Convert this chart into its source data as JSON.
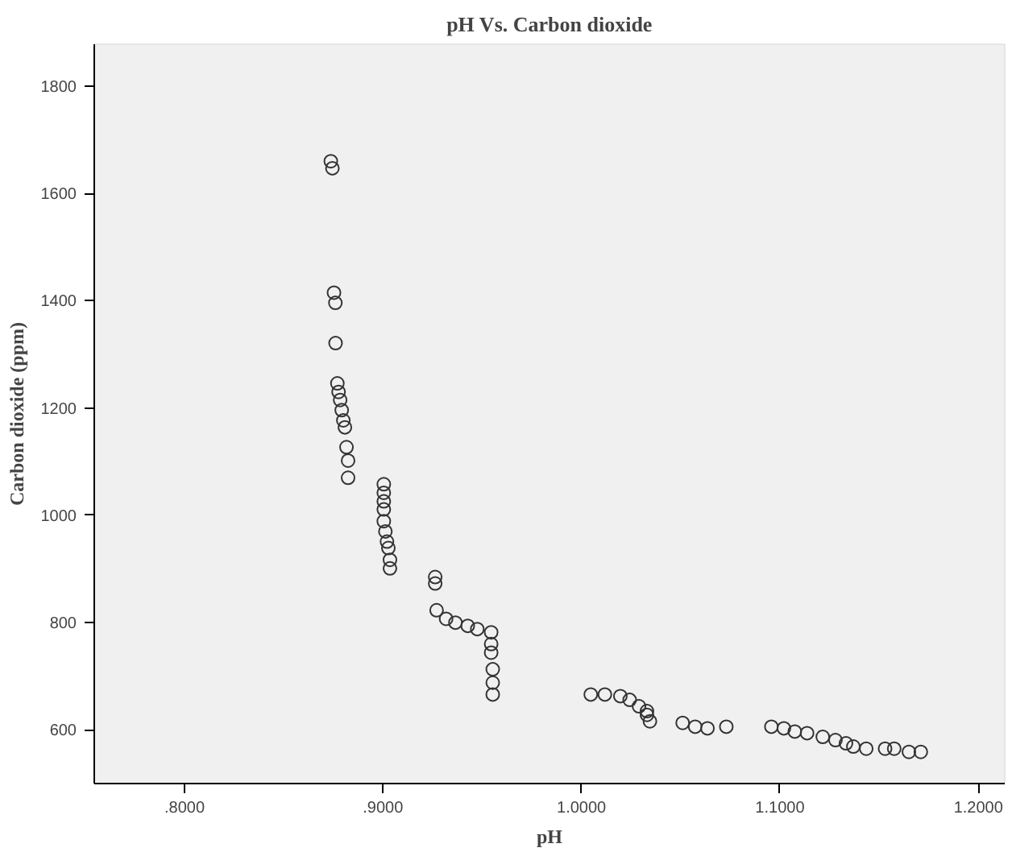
{
  "chart_data": {
    "type": "scatter",
    "title": "pH Vs. Carbon dioxide",
    "xlabel": "pH",
    "ylabel": "Carbon dioxide (ppm)",
    "xlim": [
      0.7545,
      1.2133
    ],
    "ylim": [
      500,
      1878
    ],
    "xticks": [
      {
        "value": 0.8,
        "label": ".8000"
      },
      {
        "value": 0.9,
        "label": ".9000"
      },
      {
        "value": 1.0,
        "label": "1.0000"
      },
      {
        "value": 1.1,
        "label": "1.1000"
      },
      {
        "value": 1.2,
        "label": "1.2000"
      }
    ],
    "yticks": [
      600,
      800,
      1000,
      1200,
      1400,
      1600,
      1800
    ],
    "grid": false,
    "marker": "circle",
    "series": [
      {
        "color": "#333333",
        "x": [
          0.8737,
          0.8745,
          0.8753,
          0.876,
          0.8761,
          0.877,
          0.8776,
          0.8784,
          0.8792,
          0.88,
          0.8808,
          0.8816,
          0.8824,
          0.8824,
          0.9004,
          0.9004,
          0.9004,
          0.9004,
          0.9004,
          0.9012,
          0.902,
          0.9027,
          0.9035,
          0.9035,
          0.9263,
          0.9263,
          0.927,
          0.9318,
          0.9365,
          0.9427,
          0.9475,
          0.9545,
          0.9545,
          0.9545,
          0.9553,
          0.9553,
          0.9553,
          1.0047,
          1.0118,
          1.0196,
          1.0243,
          1.029,
          1.033,
          1.033,
          1.0345,
          1.051,
          1.0573,
          1.0635,
          1.073,
          1.0957,
          1.102,
          1.1075,
          1.1137,
          1.1216,
          1.128,
          1.1333,
          1.137,
          1.1435,
          1.153,
          1.1576,
          1.165,
          1.171
        ],
        "values": [
          1660,
          1647,
          1415,
          1396,
          1321,
          1246,
          1230,
          1215,
          1196,
          1177,
          1164,
          1127,
          1102,
          1070,
          1058,
          1042,
          1026,
          1011,
          989,
          970,
          951,
          939,
          917,
          901,
          885,
          873,
          823,
          807,
          800,
          794,
          788,
          782,
          760,
          744,
          713,
          688,
          666,
          666,
          666,
          663,
          656,
          644,
          635,
          628,
          616,
          613,
          606,
          603,
          606,
          606,
          603,
          597,
          594,
          587,
          581,
          575,
          569,
          565,
          565,
          565,
          559,
          559
        ]
      }
    ]
  }
}
